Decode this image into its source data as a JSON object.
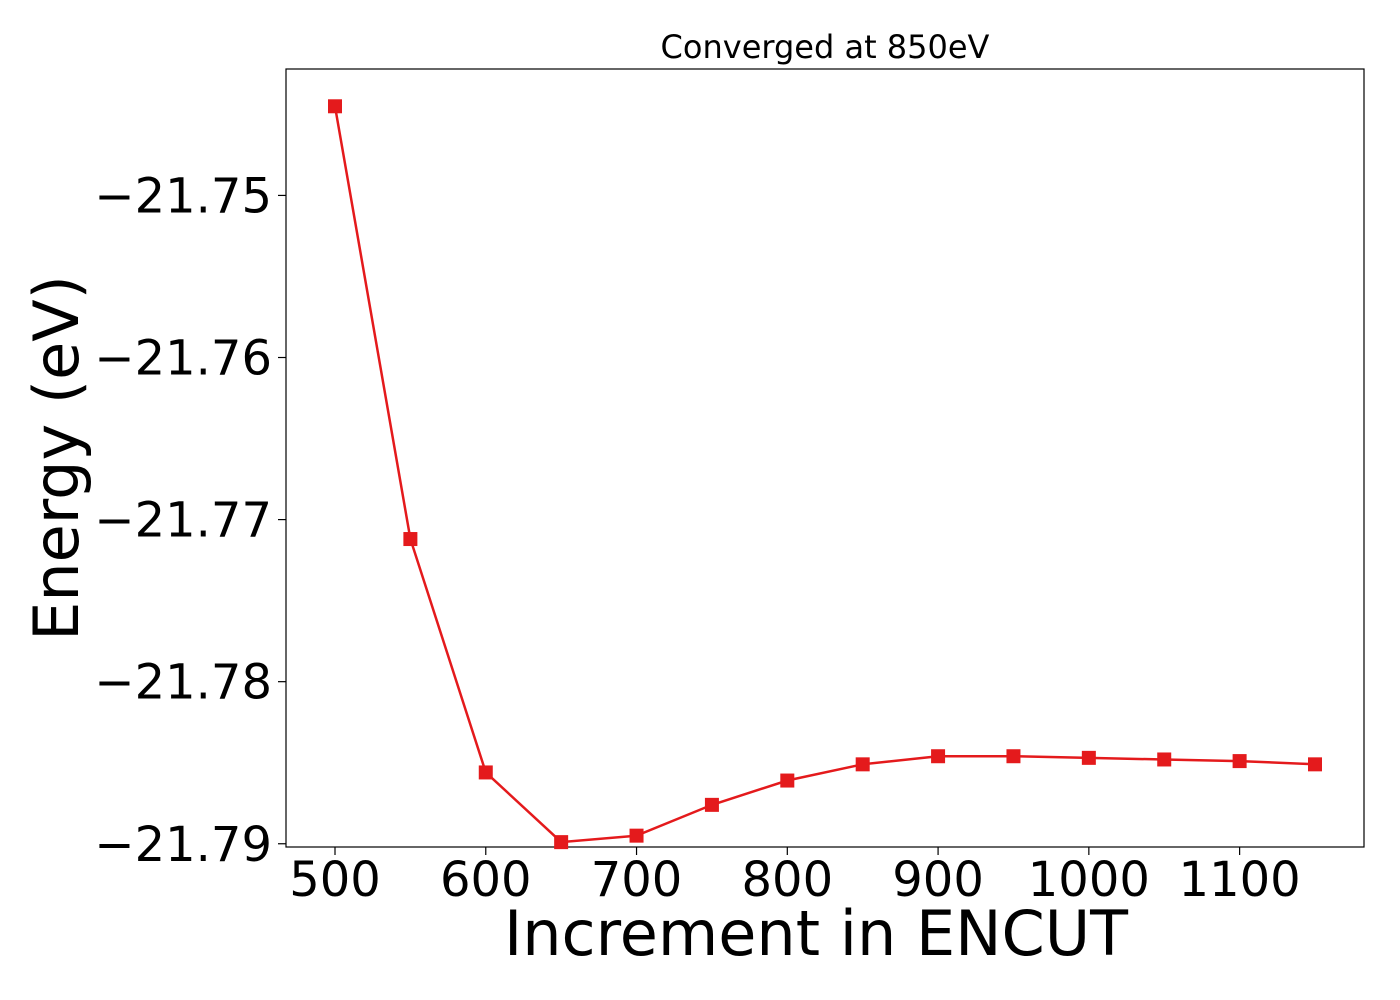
{
  "chart_data": {
    "type": "line",
    "title": "Converged at 850eV",
    "xlabel": "Increment in ENCUT",
    "ylabel": "Energy (eV)",
    "x": [
      500,
      550,
      600,
      650,
      700,
      750,
      800,
      850,
      900,
      950,
      1000,
      1050,
      1100,
      1150
    ],
    "series": [
      {
        "values": [
          -21.7445,
          -21.7712,
          -21.7856,
          -21.7899,
          -21.7895,
          -21.7876,
          -21.7861,
          -21.7851,
          -21.7846,
          -21.7846,
          -21.7847,
          -21.7848,
          -21.7849,
          -21.7851
        ],
        "color": "#e41a1c",
        "marker": "square"
      }
    ],
    "xlim": [
      467.5,
      1182.5
    ],
    "ylim": [
      -21.7902,
      -21.7422
    ],
    "xticks": [
      500,
      600,
      700,
      800,
      900,
      1000,
      1100
    ],
    "xtick_labels": [
      "500",
      "600",
      "700",
      "800",
      "900",
      "1000",
      "1100"
    ],
    "yticks": [
      -21.75,
      -21.76,
      -21.77,
      -21.78,
      -21.79
    ],
    "ytick_labels": [
      "−21.75",
      "−21.76",
      "−21.77",
      "−21.78",
      "−21.79"
    ],
    "grid": false,
    "legend": "none"
  }
}
